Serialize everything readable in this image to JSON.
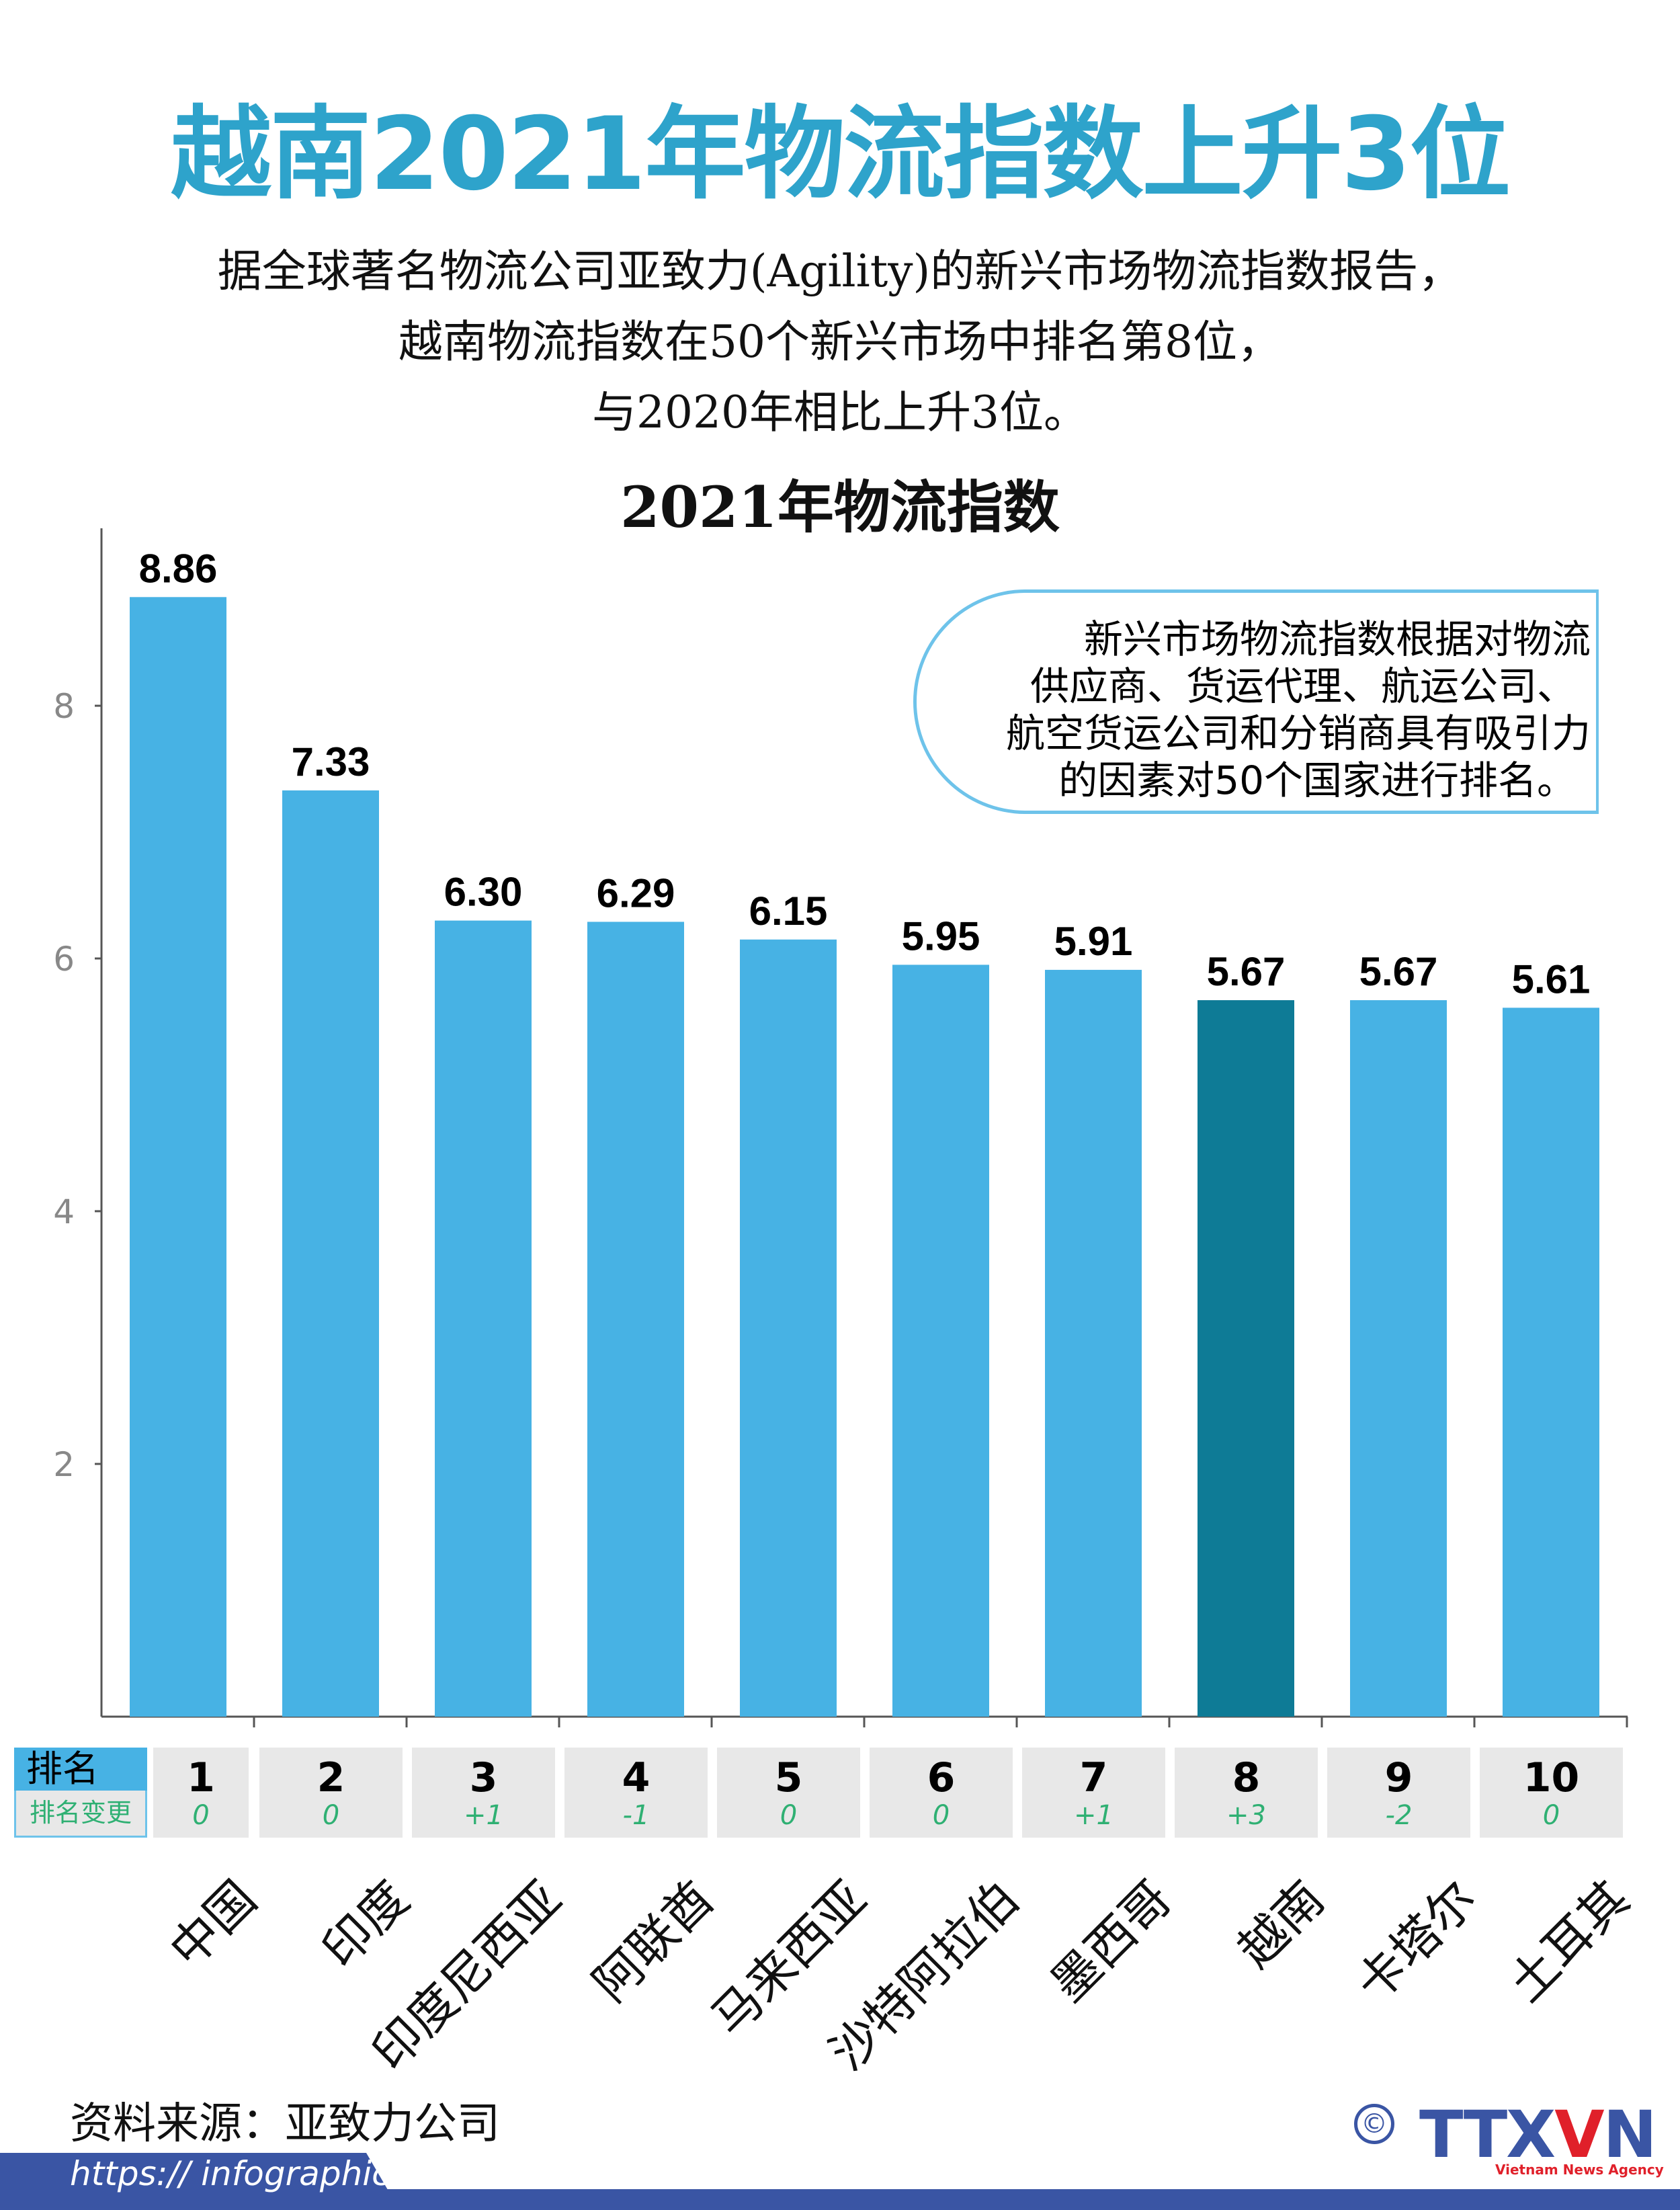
{
  "header": {
    "title": "越南2021年物流指数上升3位",
    "subtitle_lines": [
      "据全球著名物流公司亚致力(Agility)的新兴市场物流指数报告，",
      "越南物流指数在50个新兴市场中排名第8位，",
      "与2020年相比上升3位。"
    ]
  },
  "note": {
    "lines": [
      "新兴市场物流指数根据对物流",
      "供应商、货运代理、航运公司、",
      "航空货运公司和分销商具有吸引力",
      "的因素对50个国家进行排名。"
    ]
  },
  "chart_data": {
    "type": "bar",
    "title": "2021年物流指数",
    "categories": [
      "中国",
      "印度",
      "印度尼西亚",
      "阿联酋",
      "马来西亚",
      "沙特阿拉伯",
      "墨西哥",
      "越南",
      "卡塔尔",
      "土耳其"
    ],
    "values": [
      8.86,
      7.33,
      6.3,
      6.29,
      6.15,
      5.95,
      5.91,
      5.67,
      5.67,
      5.61
    ],
    "value_labels": [
      "8.86",
      "7.33",
      "6.30",
      "6.29",
      "6.15",
      "5.95",
      "5.91",
      "5.67",
      "5.67",
      "5.61"
    ],
    "yticks": [
      "2",
      "4",
      "6",
      "8"
    ],
    "ylim": [
      0,
      9.4
    ],
    "grid": false,
    "colors": {
      "bar": "#47b2e4",
      "highlight": "#0e7b96",
      "highlight_category": "越南"
    }
  },
  "rank_table": {
    "rank_label": "排名",
    "change_label": "排名变更",
    "ranks": [
      "1",
      "2",
      "3",
      "4",
      "5",
      "6",
      "7",
      "8",
      "9",
      "10"
    ],
    "changes": [
      "0",
      "0",
      "+1",
      "-1",
      "0",
      "0",
      "+1",
      "+3",
      "-2",
      "0"
    ]
  },
  "footer": {
    "source": "资料来源：亚致力公司",
    "url": "https:// infographics.vn",
    "copyright_symbol": "©",
    "logo_text": "TTXVN",
    "logo_tagline": "Vietnam News Agency"
  }
}
